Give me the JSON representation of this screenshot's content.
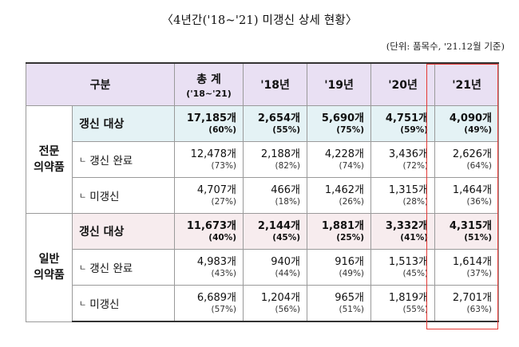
{
  "title": "〈4년간('18~'21) 미갱신 상세 현황〉",
  "unit": "(단위: 품목수, '21.12월 기준)",
  "header": {
    "category": "구분",
    "total": "총 계",
    "total_sub": "('18~'21)",
    "y18": "'18년",
    "y19": "'19년",
    "y20": "'20년",
    "y21": "'21년"
  },
  "groups": [
    {
      "name_line1": "전문",
      "name_line2": "의약품",
      "rows": [
        {
          "label": "갱신 대상",
          "cells": [
            {
              "v": "17,185개",
              "p": "(60%)"
            },
            {
              "v": "2,654개",
              "p": "(55%)"
            },
            {
              "v": "5,690개",
              "p": "(75%)"
            },
            {
              "v": "4,751개",
              "p": "(59%)"
            },
            {
              "v": "4,090개",
              "p": "(49%)"
            }
          ]
        },
        {
          "mark": "ㄴ",
          "label": "갱신 완료",
          "cells": [
            {
              "v": "12,478개",
              "p": "(73%)"
            },
            {
              "v": "2,188개",
              "p": "(82%)"
            },
            {
              "v": "4,228개",
              "p": "(74%)"
            },
            {
              "v": "3,436개",
              "p": "(72%)"
            },
            {
              "v": "2,626개",
              "p": "(64%)"
            }
          ]
        },
        {
          "mark": "ㄴ",
          "label": "미갱신",
          "cells": [
            {
              "v": "4,707개",
              "p": "(27%)"
            },
            {
              "v": "466개",
              "p": "(18%)"
            },
            {
              "v": "1,462개",
              "p": "(26%)"
            },
            {
              "v": "1,315개",
              "p": "(28%)"
            },
            {
              "v": "1,464개",
              "p": "(36%)"
            }
          ]
        }
      ]
    },
    {
      "name_line1": "일반",
      "name_line2": "의약품",
      "rows": [
        {
          "label": "갱신 대상",
          "cells": [
            {
              "v": "11,673개",
              "p": "(40%)"
            },
            {
              "v": "2,144개",
              "p": "(45%)"
            },
            {
              "v": "1,881개",
              "p": "(25%)"
            },
            {
              "v": "3,332개",
              "p": "(41%)"
            },
            {
              "v": "4,315개",
              "p": "(51%)"
            }
          ]
        },
        {
          "mark": "ㄴ",
          "label": "갱신 완료",
          "cells": [
            {
              "v": "4,983개",
              "p": "(43%)"
            },
            {
              "v": "940개",
              "p": "(44%)"
            },
            {
              "v": "916개",
              "p": "(49%)"
            },
            {
              "v": "1,513개",
              "p": "(45%)"
            },
            {
              "v": "1,614개",
              "p": "(37%)"
            }
          ]
        },
        {
          "mark": "ㄴ",
          "label": "미갱신",
          "cells": [
            {
              "v": "6,689개",
              "p": "(57%)"
            },
            {
              "v": "1,204개",
              "p": "(56%)"
            },
            {
              "v": "965개",
              "p": "(51%)"
            },
            {
              "v": "1,819개",
              "p": "(55%)"
            },
            {
              "v": "2,701개",
              "p": "(63%)"
            }
          ]
        }
      ]
    }
  ],
  "colors": {
    "header_bg": "#e9e0f3",
    "spec_target_bg": "#e4f2f5",
    "gen_target_bg": "#f7ecee",
    "highlight_border": "#e53935"
  }
}
